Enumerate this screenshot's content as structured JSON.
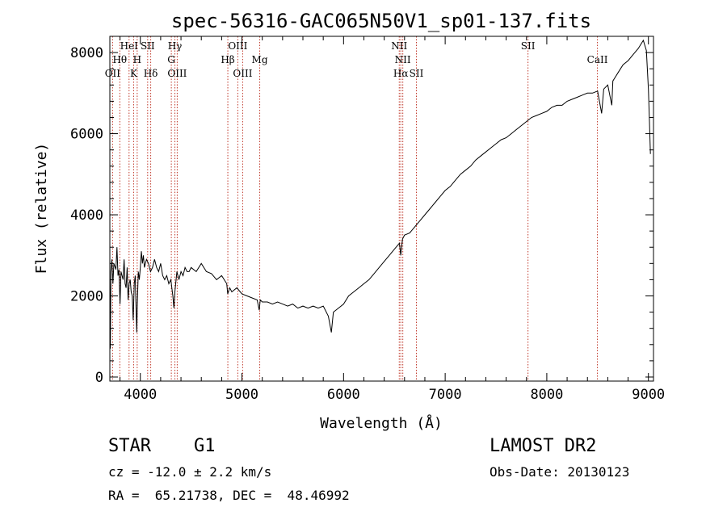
{
  "chart_data": {
    "type": "line",
    "title": "spec-56316-GAC065N50V1_sp01-137.fits",
    "xlabel": "Wavelength (Å)",
    "ylabel": "Flux (relative)",
    "xlim": [
      3700,
      9050
    ],
    "ylim": [
      -100,
      8400
    ],
    "x_ticks": [
      4000,
      5000,
      6000,
      7000,
      8000,
      9000
    ],
    "y_ticks": [
      0,
      2000,
      4000,
      6000,
      8000
    ],
    "grid": false,
    "legend": "none",
    "series": [
      {
        "points": [
          [
            3700,
            2400
          ],
          [
            3705,
            700
          ],
          [
            3710,
            2600
          ],
          [
            3720,
            2900
          ],
          [
            3730,
            2300
          ],
          [
            3740,
            2800
          ],
          [
            3760,
            2650
          ],
          [
            3770,
            3200
          ],
          [
            3780,
            2500
          ],
          [
            3790,
            2650
          ],
          [
            3800,
            1800
          ],
          [
            3810,
            2600
          ],
          [
            3820,
            2500
          ],
          [
            3830,
            2400
          ],
          [
            3840,
            2900
          ],
          [
            3850,
            2300
          ],
          [
            3860,
            2200
          ],
          [
            3870,
            2700
          ],
          [
            3880,
            1900
          ],
          [
            3890,
            2300
          ],
          [
            3900,
            2400
          ],
          [
            3910,
            2100
          ],
          [
            3920,
            2000
          ],
          [
            3930,
            1400
          ],
          [
            3940,
            2300
          ],
          [
            3950,
            2500
          ],
          [
            3960,
            1500
          ],
          [
            3965,
            1100
          ],
          [
            3970,
            1800
          ],
          [
            3980,
            2600
          ],
          [
            3990,
            2400
          ],
          [
            4000,
            2700
          ],
          [
            4010,
            3100
          ],
          [
            4020,
            2800
          ],
          [
            4030,
            3000
          ],
          [
            4040,
            2700
          ],
          [
            4060,
            2900
          ],
          [
            4080,
            2800
          ],
          [
            4100,
            2600
          ],
          [
            4120,
            2700
          ],
          [
            4140,
            2900
          ],
          [
            4160,
            2700
          ],
          [
            4180,
            2600
          ],
          [
            4200,
            2800
          ],
          [
            4220,
            2500
          ],
          [
            4240,
            2400
          ],
          [
            4260,
            2500
          ],
          [
            4280,
            2300
          ],
          [
            4300,
            2400
          ],
          [
            4320,
            2000
          ],
          [
            4330,
            1700
          ],
          [
            4340,
            2100
          ],
          [
            4360,
            2600
          ],
          [
            4380,
            2400
          ],
          [
            4400,
            2600
          ],
          [
            4420,
            2500
          ],
          [
            4440,
            2700
          ],
          [
            4460,
            2600
          ],
          [
            4480,
            2600
          ],
          [
            4500,
            2700
          ],
          [
            4550,
            2600
          ],
          [
            4600,
            2800
          ],
          [
            4650,
            2600
          ],
          [
            4700,
            2550
          ],
          [
            4750,
            2400
          ],
          [
            4800,
            2500
          ],
          [
            4850,
            2300
          ],
          [
            4860,
            2050
          ],
          [
            4880,
            2200
          ],
          [
            4900,
            2100
          ],
          [
            4950,
            2200
          ],
          [
            5000,
            2050
          ],
          [
            5050,
            2000
          ],
          [
            5100,
            1950
          ],
          [
            5150,
            1900
          ],
          [
            5170,
            1650
          ],
          [
            5180,
            1900
          ],
          [
            5200,
            1850
          ],
          [
            5250,
            1850
          ],
          [
            5300,
            1800
          ],
          [
            5350,
            1850
          ],
          [
            5400,
            1800
          ],
          [
            5450,
            1750
          ],
          [
            5500,
            1800
          ],
          [
            5550,
            1700
          ],
          [
            5600,
            1750
          ],
          [
            5650,
            1700
          ],
          [
            5700,
            1750
          ],
          [
            5750,
            1700
          ],
          [
            5800,
            1750
          ],
          [
            5850,
            1500
          ],
          [
            5880,
            1100
          ],
          [
            5900,
            1600
          ],
          [
            5950,
            1700
          ],
          [
            6000,
            1800
          ],
          [
            6050,
            2000
          ],
          [
            6100,
            2100
          ],
          [
            6150,
            2200
          ],
          [
            6200,
            2300
          ],
          [
            6250,
            2400
          ],
          [
            6300,
            2550
          ],
          [
            6350,
            2700
          ],
          [
            6400,
            2850
          ],
          [
            6450,
            3000
          ],
          [
            6500,
            3150
          ],
          [
            6550,
            3300
          ],
          [
            6563,
            3000
          ],
          [
            6580,
            3400
          ],
          [
            6600,
            3500
          ],
          [
            6650,
            3550
          ],
          [
            6700,
            3700
          ],
          [
            6750,
            3850
          ],
          [
            6800,
            4000
          ],
          [
            6850,
            4150
          ],
          [
            6900,
            4300
          ],
          [
            6950,
            4450
          ],
          [
            7000,
            4600
          ],
          [
            7050,
            4700
          ],
          [
            7100,
            4850
          ],
          [
            7150,
            5000
          ],
          [
            7200,
            5100
          ],
          [
            7250,
            5200
          ],
          [
            7300,
            5350
          ],
          [
            7350,
            5450
          ],
          [
            7400,
            5550
          ],
          [
            7450,
            5650
          ],
          [
            7500,
            5750
          ],
          [
            7550,
            5850
          ],
          [
            7600,
            5900
          ],
          [
            7650,
            6000
          ],
          [
            7700,
            6100
          ],
          [
            7750,
            6200
          ],
          [
            7800,
            6300
          ],
          [
            7850,
            6400
          ],
          [
            7900,
            6450
          ],
          [
            7950,
            6500
          ],
          [
            8000,
            6550
          ],
          [
            8050,
            6650
          ],
          [
            8100,
            6700
          ],
          [
            8150,
            6700
          ],
          [
            8200,
            6800
          ],
          [
            8250,
            6850
          ],
          [
            8300,
            6900
          ],
          [
            8350,
            6950
          ],
          [
            8400,
            7000
          ],
          [
            8450,
            7000
          ],
          [
            8500,
            7050
          ],
          [
            8540,
            6500
          ],
          [
            8560,
            7100
          ],
          [
            8600,
            7200
          ],
          [
            8640,
            6700
          ],
          [
            8650,
            7300
          ],
          [
            8700,
            7500
          ],
          [
            8750,
            7700
          ],
          [
            8800,
            7800
          ],
          [
            8850,
            7950
          ],
          [
            8900,
            8100
          ],
          [
            8950,
            8300
          ],
          [
            8980,
            8050
          ],
          [
            9000,
            7100
          ],
          [
            9010,
            6300
          ],
          [
            9020,
            5500
          ]
        ]
      }
    ],
    "line_markers": [
      {
        "label": "OII",
        "x": 3727,
        "row": 3
      },
      {
        "label": "Hθ",
        "x": 3798,
        "row": 2
      },
      {
        "label": "HeI",
        "x": 3889,
        "row": 1
      },
      {
        "label": "K",
        "x": 3934,
        "row": 3
      },
      {
        "label": "H",
        "x": 3969,
        "row": 2
      },
      {
        "label": "SII",
        "x": 4072,
        "row": 1
      },
      {
        "label": "Hδ",
        "x": 4102,
        "row": 3
      },
      {
        "label": "Hγ",
        "x": 4340,
        "row": 1
      },
      {
        "label": "G",
        "x": 4305,
        "row": 2
      },
      {
        "label": "OIII",
        "x": 4363,
        "row": 3
      },
      {
        "label": "Hβ",
        "x": 4861,
        "row": 2
      },
      {
        "label": "OIII",
        "x": 4959,
        "row": 1
      },
      {
        "label": "OIII",
        "x": 5007,
        "row": 3
      },
      {
        "label": "Mg",
        "x": 5175,
        "row": 2
      },
      {
        "label": "NII",
        "x": 6548,
        "row": 1
      },
      {
        "label": "NII",
        "x": 6583,
        "row": 2
      },
      {
        "label": "Hα",
        "x": 6563,
        "row": 3
      },
      {
        "label": "SII",
        "x": 6717,
        "row": 3
      },
      {
        "label": "SII",
        "x": 7815,
        "row": 1
      },
      {
        "label": "CaII",
        "x": 8498,
        "row": 2
      }
    ],
    "marker_color": "#c0392b",
    "line_color": "#000000"
  },
  "info": {
    "object_type": "STAR",
    "subclass": "G1",
    "cz": "cz = -12.0 ± 2.2 km/s",
    "coords": "RA =  65.21738, DEC =  48.46992",
    "survey": "LAMOST DR2",
    "obs_date": "Obs-Date: 20130123"
  }
}
